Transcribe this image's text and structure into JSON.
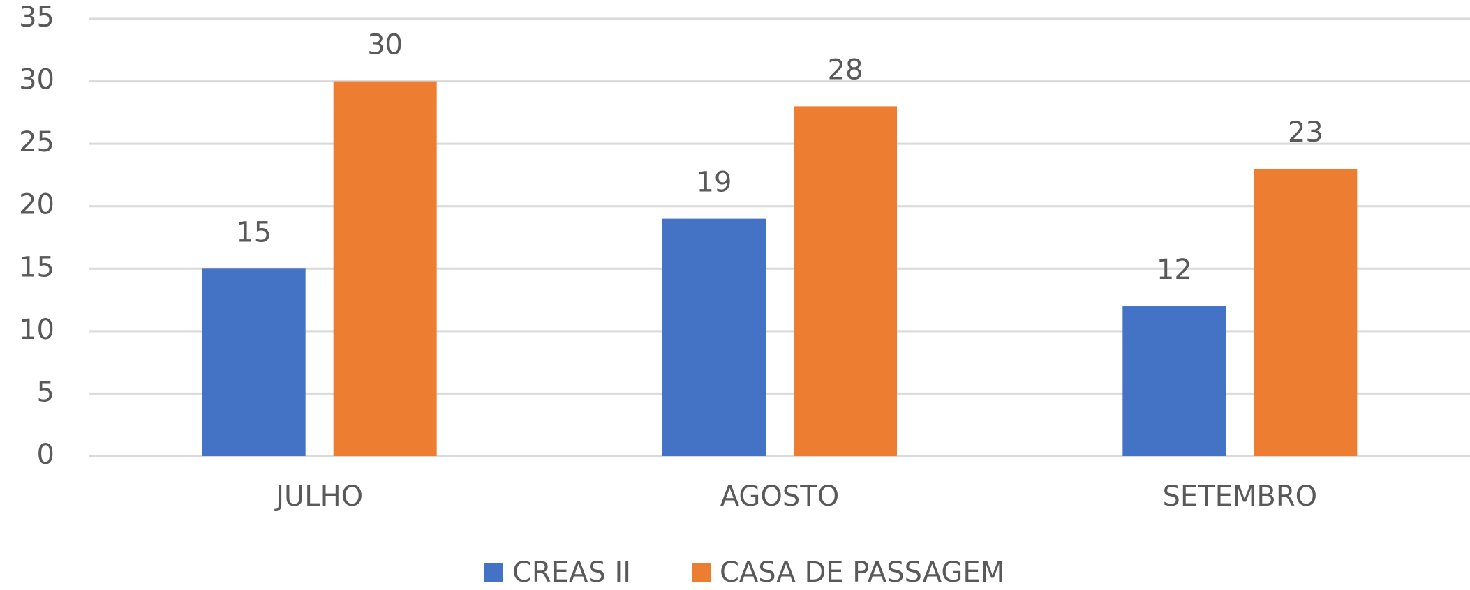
{
  "chart_data": {
    "type": "bar",
    "categories": [
      "JULHO",
      "AGOSTO",
      "SETEMBRO"
    ],
    "series": [
      {
        "name": "CREAS II",
        "color": "#4472c4",
        "values": [
          15,
          19,
          12
        ]
      },
      {
        "name": "CASA DE PASSAGEM",
        "color": "#ed7d31",
        "values": [
          30,
          28,
          23
        ]
      }
    ],
    "ylim": [
      0,
      35
    ],
    "yticks": [
      0,
      5,
      10,
      15,
      20,
      25,
      30,
      35
    ],
    "grid": true,
    "legend": "bottom"
  }
}
